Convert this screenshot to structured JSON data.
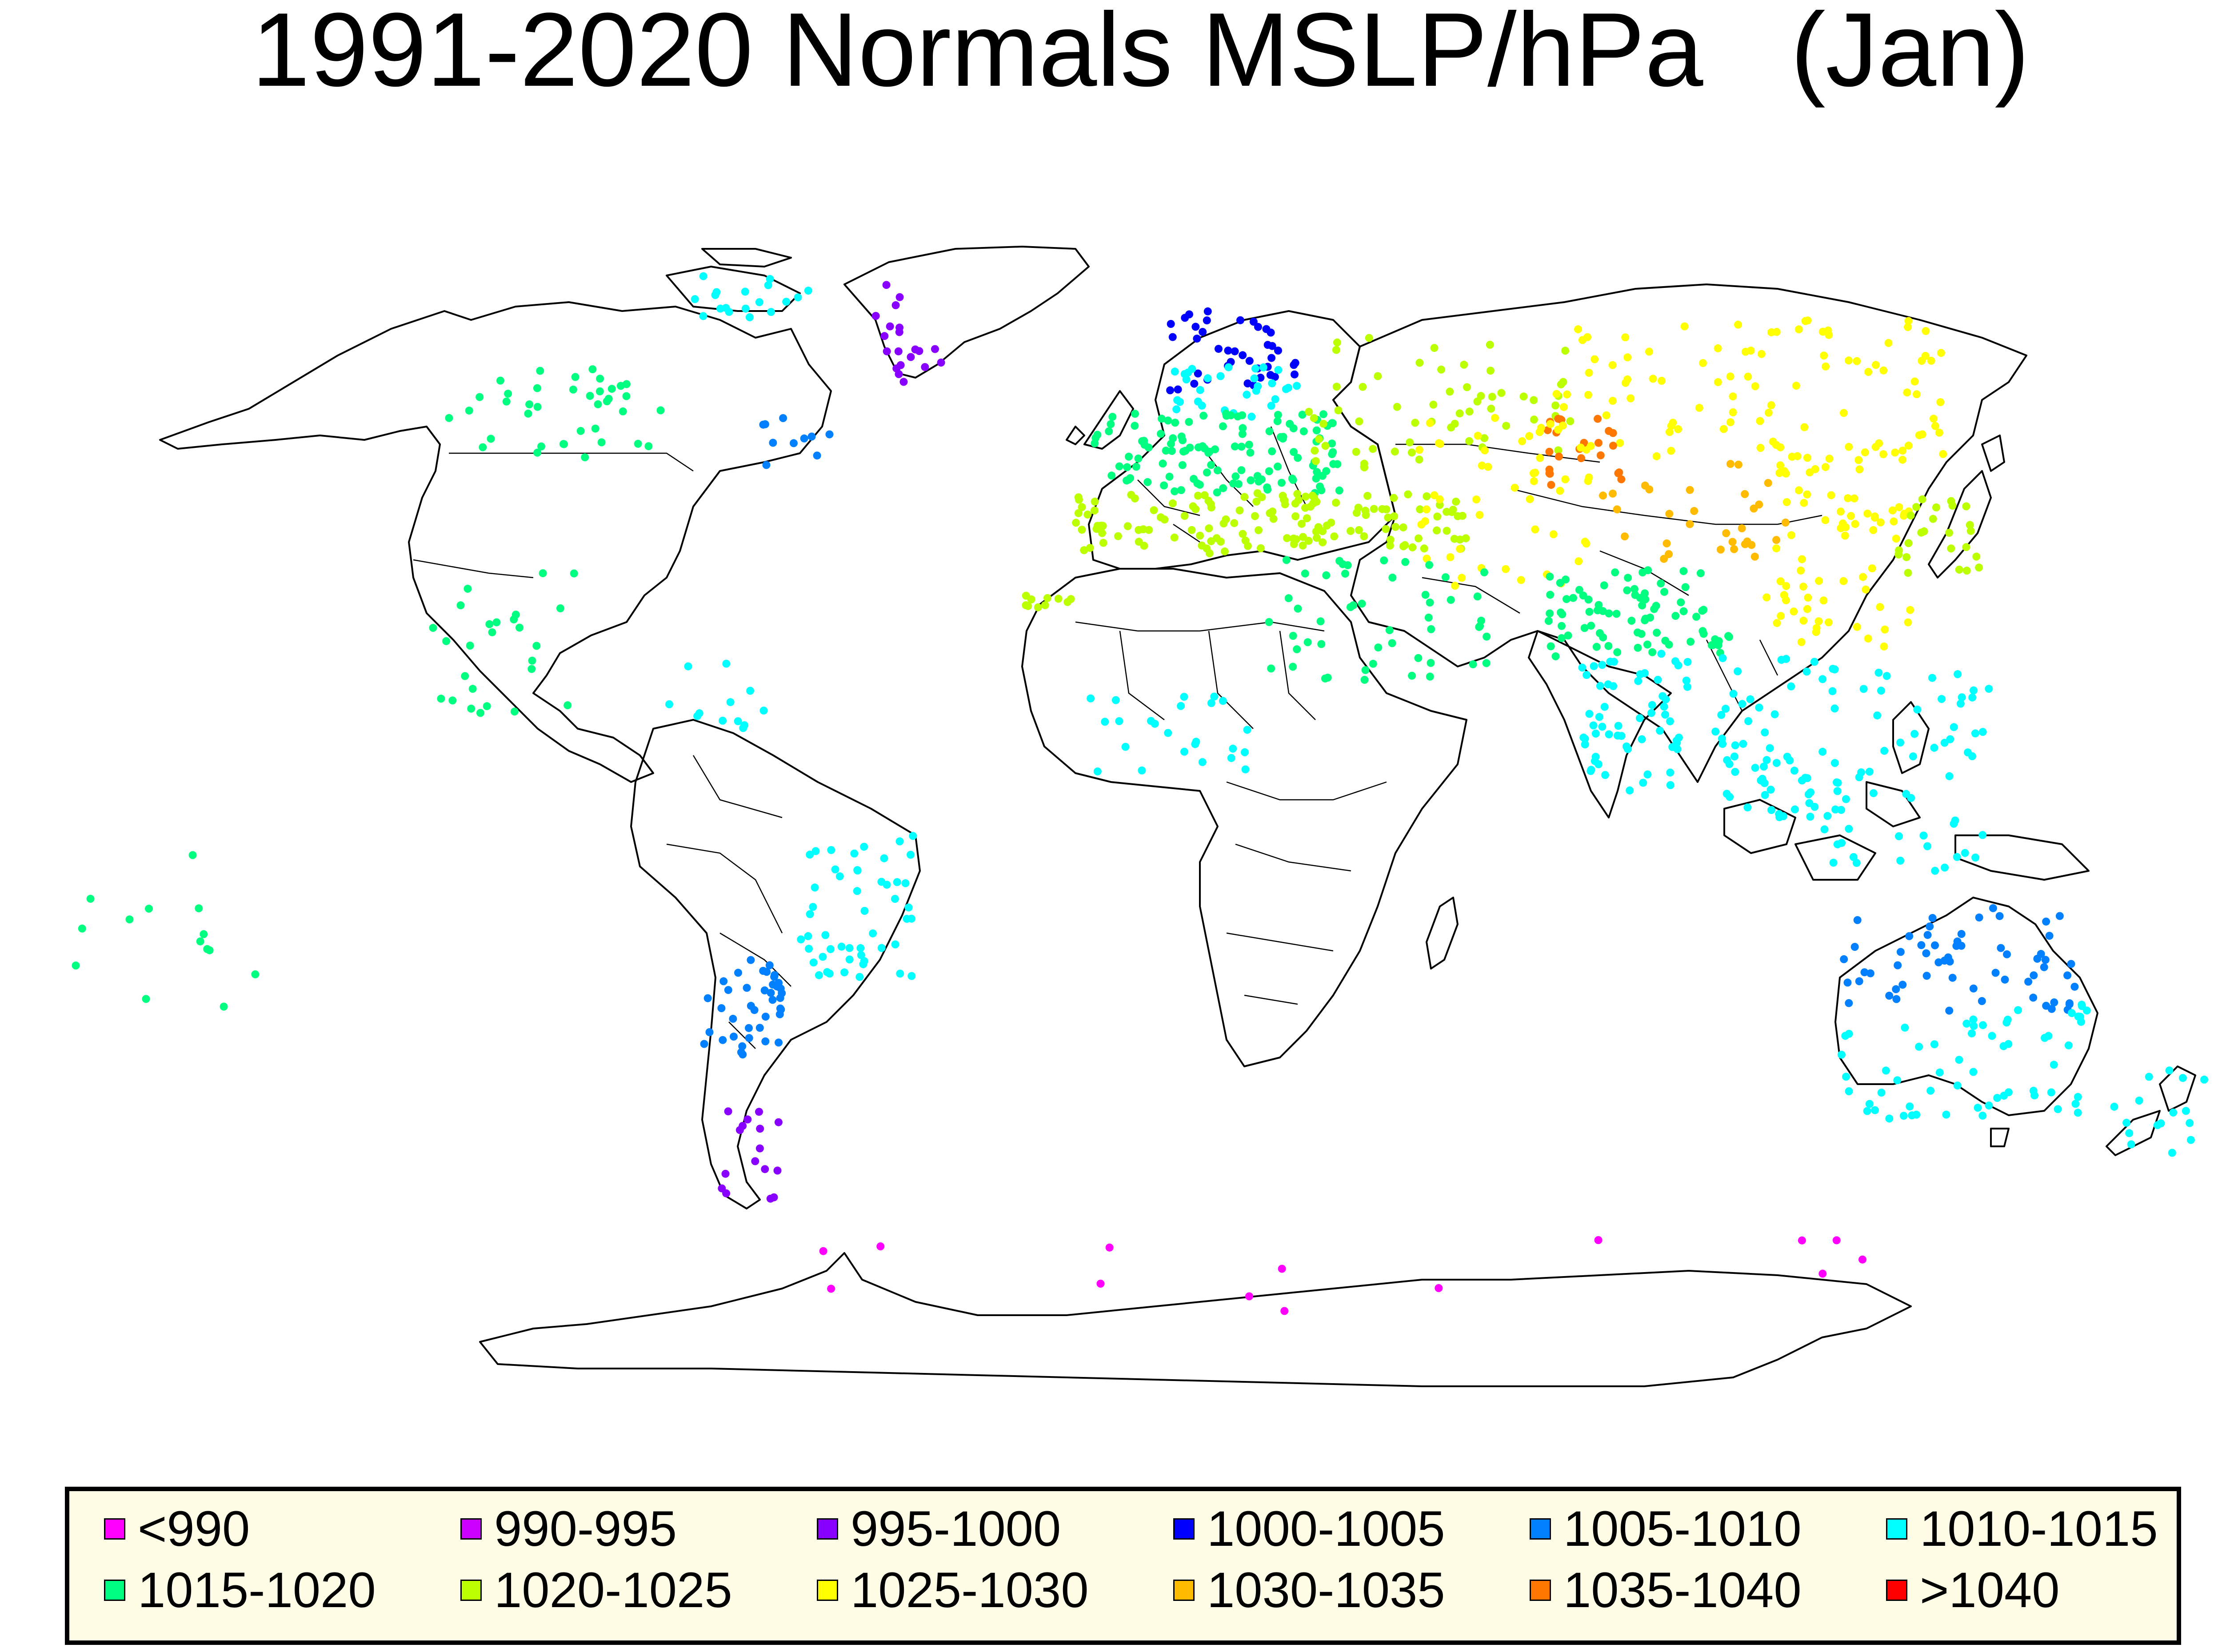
{
  "title": "1991-2020 Normals MSLP/hPa   (Jan)",
  "legend": {
    "items": [
      {
        "label": "<990",
        "color": "#ff00ff"
      },
      {
        "label": "990-995",
        "color": "#cc00ff"
      },
      {
        "label": "995-1000",
        "color": "#8800ff"
      },
      {
        "label": "1000-1005",
        "color": "#0000ff"
      },
      {
        "label": "1005-1010",
        "color": "#0080ff"
      },
      {
        "label": "1010-1015",
        "color": "#00ffff"
      },
      {
        "label": "1015-1020",
        "color": "#00ff80"
      },
      {
        "label": "1020-1025",
        "color": "#bbff00"
      },
      {
        "label": "1025-1030",
        "color": "#ffff00"
      },
      {
        "label": "1030-1035",
        "color": "#ffbb00"
      },
      {
        "label": "1035-1040",
        "color": "#ff7700"
      },
      {
        "label": ">1040",
        "color": "#ff0000"
      }
    ]
  },
  "station_regions": [
    {
      "region": "Canada",
      "class": "1015-1020"
    },
    {
      "region": "Canadian Arctic Archipelago",
      "class": "1010-1015"
    },
    {
      "region": "Greenland coast",
      "class": "995-1000"
    },
    {
      "region": "Eastern Canada / Newfoundland",
      "class": "1005-1010"
    },
    {
      "region": "Mexico and Central America",
      "class": "1015-1020"
    },
    {
      "region": "Caribbean",
      "class": "1010-1015"
    },
    {
      "region": "Scandinavia",
      "class": "1000-1005"
    },
    {
      "region": "Southern Scandinavia / Baltic",
      "class": "1010-1015"
    },
    {
      "region": "Central and Western Europe",
      "class": "1015-1020"
    },
    {
      "region": "Iberia and Mediterranean",
      "class": "1020-1025"
    },
    {
      "region": "Balkans and Black Sea",
      "class": "1020-1025"
    },
    {
      "region": "Russia",
      "class": "1020-1025"
    },
    {
      "region": "Siberia",
      "class": "1025-1030"
    },
    {
      "region": "Mongolia",
      "class": "1035-1040"
    },
    {
      "region": "Central Asia",
      "class": "1025-1030"
    },
    {
      "region": "Western China",
      "class": "1030-1035"
    },
    {
      "region": "Eastern China",
      "class": "1025-1030"
    },
    {
      "region": "Japan and Korea",
      "class": "1020-1025"
    },
    {
      "region": "Middle East",
      "class": "1015-1020"
    },
    {
      "region": "Northern India",
      "class": "1015-1020"
    },
    {
      "region": "Southern India",
      "class": "1010-1015"
    },
    {
      "region": "Southeast Asia",
      "class": "1010-1015"
    },
    {
      "region": "Indonesia and Philippines",
      "class": "1010-1015"
    },
    {
      "region": "West Africa",
      "class": "1010-1015"
    },
    {
      "region": "Brazil",
      "class": "1010-1015"
    },
    {
      "region": "Northern Argentina",
      "class": "1005-1010"
    },
    {
      "region": "Southern Patagonia",
      "class": "995-1000"
    },
    {
      "region": "Northern Australia",
      "class": "1005-1010"
    },
    {
      "region": "Southern Australia",
      "class": "1010-1015"
    },
    {
      "region": "New Zealand",
      "class": "1010-1015"
    },
    {
      "region": "Pacific Islands",
      "class": "1015-1020"
    },
    {
      "region": "Antarctica",
      "class": "<990"
    }
  ]
}
